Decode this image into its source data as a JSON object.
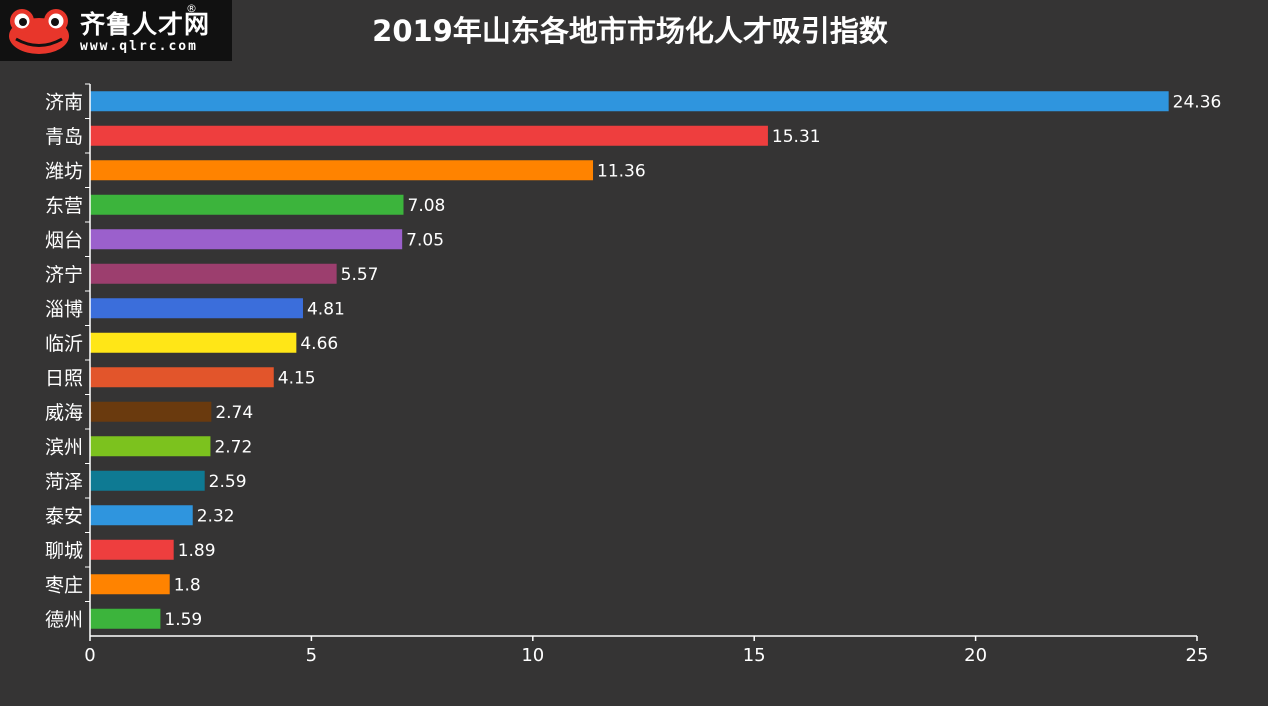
{
  "logo": {
    "name": "齐鲁人才网",
    "registered_mark": "®",
    "url": "www.qlrc.com"
  },
  "chart_data": {
    "type": "bar",
    "orientation": "horizontal",
    "title": "2019年山东各地市市场化人才吸引指数",
    "categories": [
      "济南",
      "青岛",
      "潍坊",
      "东营",
      "烟台",
      "济宁",
      "淄博",
      "临沂",
      "日照",
      "威海",
      "滨州",
      "菏泽",
      "泰安",
      "聊城",
      "枣庄",
      "德州"
    ],
    "values": [
      24.36,
      15.31,
      11.36,
      7.08,
      7.05,
      5.57,
      4.81,
      4.66,
      4.15,
      2.74,
      2.72,
      2.59,
      2.32,
      1.89,
      1.8,
      1.59
    ],
    "value_labels": [
      "24.36",
      "15.31",
      "11.36",
      "7.08",
      "7.05",
      "5.57",
      "4.81",
      "4.66",
      "4.15",
      "2.74",
      "2.72",
      "2.59",
      "2.32",
      "1.89",
      "1.8",
      "1.59"
    ],
    "colors": [
      "#2F95DE",
      "#EE3E3E",
      "#FF8300",
      "#3CB43C",
      "#9B60CC",
      "#9C3E6E",
      "#3B6EDB",
      "#FFE617",
      "#E2552B",
      "#6A3A0E",
      "#7CC21E",
      "#0E7A93",
      "#2F95DE",
      "#EE3E3E",
      "#FF8300",
      "#3CB43C"
    ],
    "xlim": [
      0,
      25
    ],
    "xticks": [
      0,
      5,
      10,
      15,
      20,
      25
    ],
    "xlabel": "",
    "ylabel": "",
    "grid": false,
    "legend": "none"
  }
}
